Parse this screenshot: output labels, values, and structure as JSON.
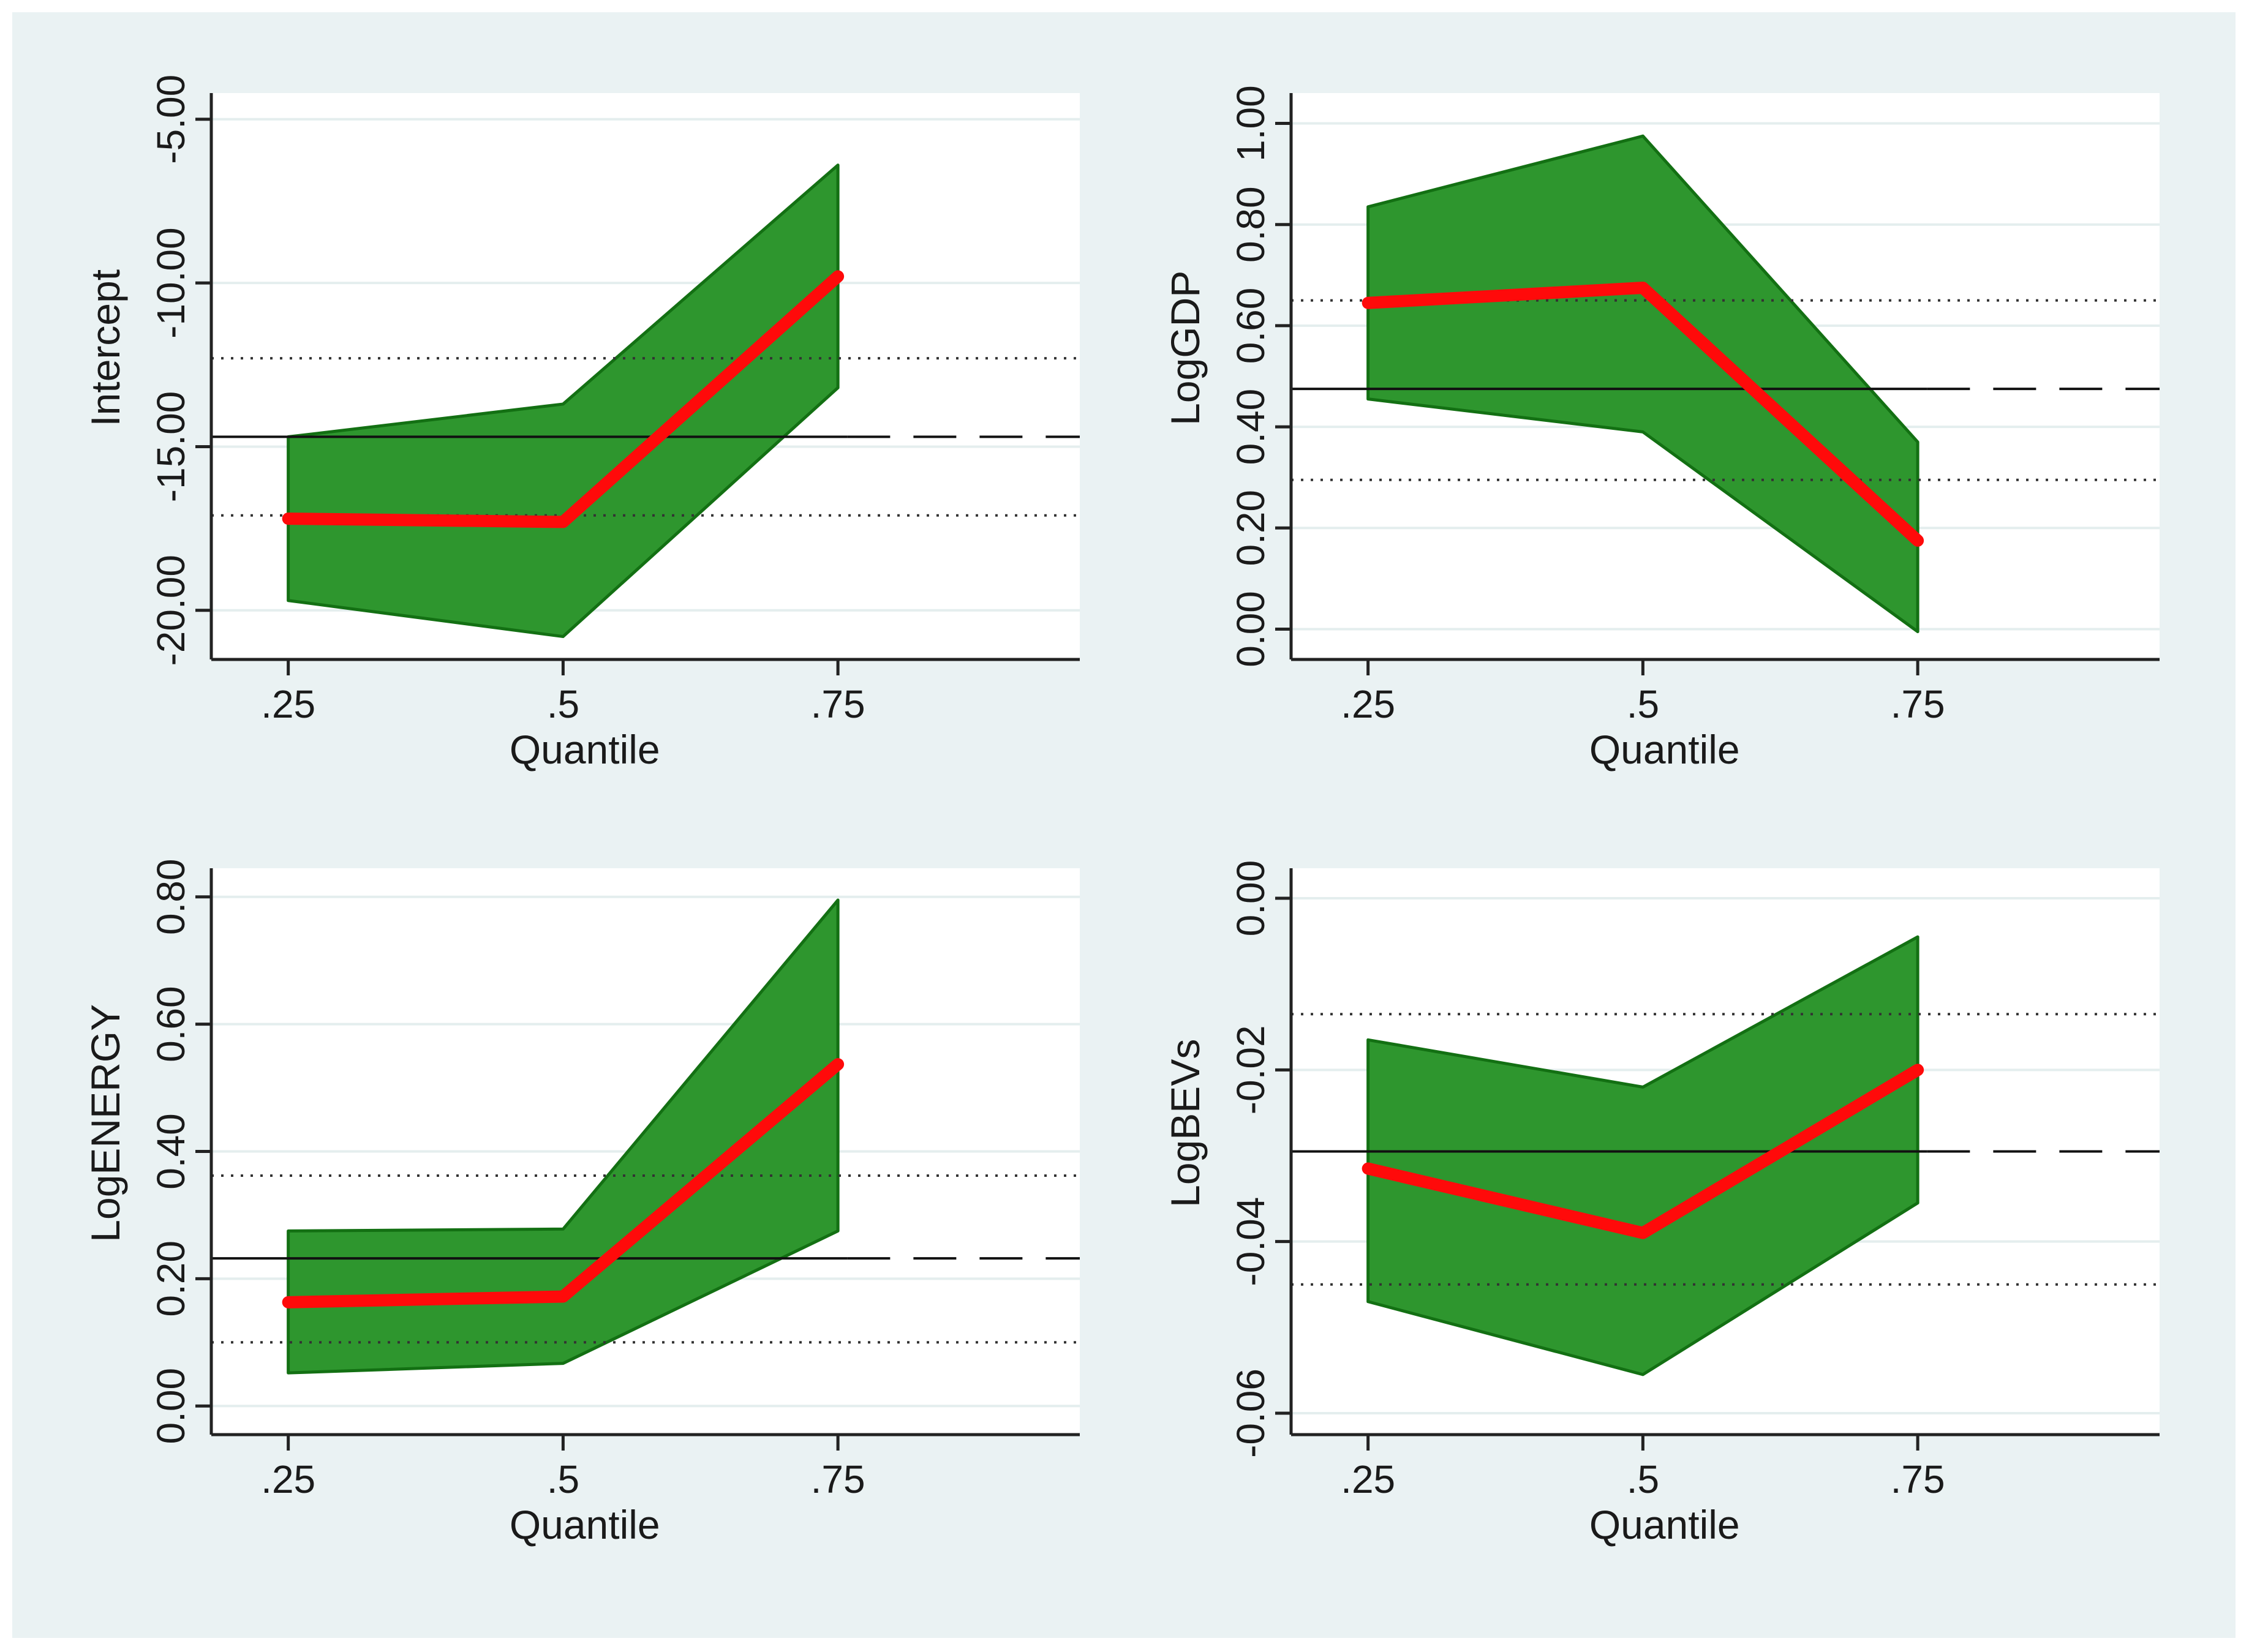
{
  "colors": {
    "figure_background": "#eaf2f3",
    "plot_background": "#ffffff",
    "gridline": "#e4eeee",
    "band_fill": "#2e962e",
    "band_edge": "#137013",
    "estimate_line": "#ff0a0a",
    "ols_line": "#111111",
    "ci_dots": "#333333",
    "axis": "#222222"
  },
  "chart_data": [
    {
      "type": "line",
      "ylabel": "Intercept",
      "xlabel": "Quantile",
      "x_ticks": [
        ".25",
        ".5",
        ".75"
      ],
      "x_tick_values": [
        0.25,
        0.5,
        0.75
      ],
      "xlim": [
        0.18,
        0.97
      ],
      "y_ticks": [
        "-5.00",
        "-10.00",
        "-15.00",
        "-20.00"
      ],
      "y_tick_values": [
        -5,
        -10,
        -15,
        -20
      ],
      "ylim": [
        -21.5,
        -4.2
      ],
      "grid": true,
      "series": [
        {
          "name": "Quantile estimate",
          "x": [
            0.25,
            0.5,
            0.75
          ],
          "values": [
            -17.2,
            -17.3,
            -9.8
          ]
        },
        {
          "name": "CI lower",
          "x": [
            0.25,
            0.5,
            0.75
          ],
          "values": [
            -19.7,
            -20.8,
            -13.2
          ]
        },
        {
          "name": "CI upper",
          "x": [
            0.25,
            0.5,
            0.75
          ],
          "values": [
            -14.7,
            -13.7,
            -6.4
          ]
        },
        {
          "name": "OLS estimate",
          "x": [
            0.18,
            0.97
          ],
          "values": [
            -14.7,
            -14.7
          ]
        },
        {
          "name": "OLS CI lower",
          "x": [
            0.18,
            0.97
          ],
          "values": [
            -17.1,
            -17.1
          ]
        },
        {
          "name": "OLS CI upper",
          "x": [
            0.18,
            0.97
          ],
          "values": [
            -12.3,
            -12.3
          ]
        }
      ]
    },
    {
      "type": "line",
      "ylabel": "LogGDP",
      "xlabel": "Quantile",
      "x_ticks": [
        ".25",
        ".5",
        ".75"
      ],
      "x_tick_values": [
        0.25,
        0.5,
        0.75
      ],
      "xlim": [
        0.18,
        0.97
      ],
      "y_ticks": [
        "1.00",
        "0.80",
        "0.60",
        "0.40",
        "0.20",
        "0.00"
      ],
      "y_tick_values": [
        1.0,
        0.8,
        0.6,
        0.4,
        0.2,
        0.0
      ],
      "ylim": [
        -0.06,
        1.06
      ],
      "grid": true,
      "series": [
        {
          "name": "Quantile estimate",
          "x": [
            0.25,
            0.5,
            0.75
          ],
          "values": [
            0.645,
            0.675,
            0.175
          ]
        },
        {
          "name": "CI lower",
          "x": [
            0.25,
            0.5,
            0.75
          ],
          "values": [
            0.455,
            0.39,
            -0.005
          ]
        },
        {
          "name": "CI upper",
          "x": [
            0.25,
            0.5,
            0.75
          ],
          "values": [
            0.835,
            0.975,
            0.37
          ]
        },
        {
          "name": "OLS estimate",
          "x": [
            0.18,
            0.97
          ],
          "values": [
            0.475,
            0.475
          ]
        },
        {
          "name": "OLS CI lower",
          "x": [
            0.18,
            0.97
          ],
          "values": [
            0.295,
            0.295
          ]
        },
        {
          "name": "OLS CI upper",
          "x": [
            0.18,
            0.97
          ],
          "values": [
            0.65,
            0.65
          ]
        }
      ]
    },
    {
      "type": "line",
      "ylabel": "LogENERGY",
      "xlabel": "Quantile",
      "x_ticks": [
        ".25",
        ".5",
        ".75"
      ],
      "x_tick_values": [
        0.25,
        0.5,
        0.75
      ],
      "xlim": [
        0.18,
        0.97
      ],
      "y_ticks": [
        "0.80",
        "0.60",
        "0.40",
        "0.20",
        "0.00"
      ],
      "y_tick_values": [
        0.8,
        0.6,
        0.4,
        0.2,
        0.0
      ],
      "ylim": [
        -0.045,
        0.845
      ],
      "grid": true,
      "series": [
        {
          "name": "Quantile estimate",
          "x": [
            0.25,
            0.5,
            0.75
          ],
          "values": [
            0.163,
            0.172,
            0.537
          ]
        },
        {
          "name": "CI lower",
          "x": [
            0.25,
            0.5,
            0.75
          ],
          "values": [
            0.052,
            0.067,
            0.275
          ]
        },
        {
          "name": "CI upper",
          "x": [
            0.25,
            0.5,
            0.75
          ],
          "values": [
            0.275,
            0.278,
            0.795
          ]
        },
        {
          "name": "OLS estimate",
          "x": [
            0.18,
            0.97
          ],
          "values": [
            0.232,
            0.232
          ]
        },
        {
          "name": "OLS CI lower",
          "x": [
            0.18,
            0.97
          ],
          "values": [
            0.1,
            0.1
          ]
        },
        {
          "name": "OLS CI upper",
          "x": [
            0.18,
            0.97
          ],
          "values": [
            0.362,
            0.362
          ]
        }
      ]
    },
    {
      "type": "line",
      "ylabel": "LogBEVs",
      "xlabel": "Quantile",
      "x_ticks": [
        ".25",
        ".5",
        ".75"
      ],
      "x_tick_values": [
        0.25,
        0.5,
        0.75
      ],
      "xlim": [
        0.18,
        0.97
      ],
      "y_ticks": [
        "0.00",
        "-0.02",
        "-0.04",
        "-0.06"
      ],
      "y_tick_values": [
        0.0,
        -0.02,
        -0.04,
        -0.06
      ],
      "ylim": [
        -0.0625,
        0.0035
      ],
      "grid": true,
      "series": [
        {
          "name": "Quantile estimate",
          "x": [
            0.25,
            0.5,
            0.75
          ],
          "values": [
            -0.0315,
            -0.039,
            -0.02
          ]
        },
        {
          "name": "CI lower",
          "x": [
            0.25,
            0.5,
            0.75
          ],
          "values": [
            -0.047,
            -0.0555,
            -0.0355
          ]
        },
        {
          "name": "CI upper",
          "x": [
            0.25,
            0.5,
            0.75
          ],
          "values": [
            -0.0165,
            -0.022,
            -0.0045
          ]
        },
        {
          "name": "OLS estimate",
          "x": [
            0.18,
            0.97
          ],
          "values": [
            -0.0295,
            -0.0295
          ]
        },
        {
          "name": "OLS CI lower",
          "x": [
            0.18,
            0.97
          ],
          "values": [
            -0.045,
            -0.045
          ]
        },
        {
          "name": "OLS CI upper",
          "x": [
            0.18,
            0.97
          ],
          "values": [
            -0.0135,
            -0.0135
          ]
        }
      ]
    }
  ]
}
